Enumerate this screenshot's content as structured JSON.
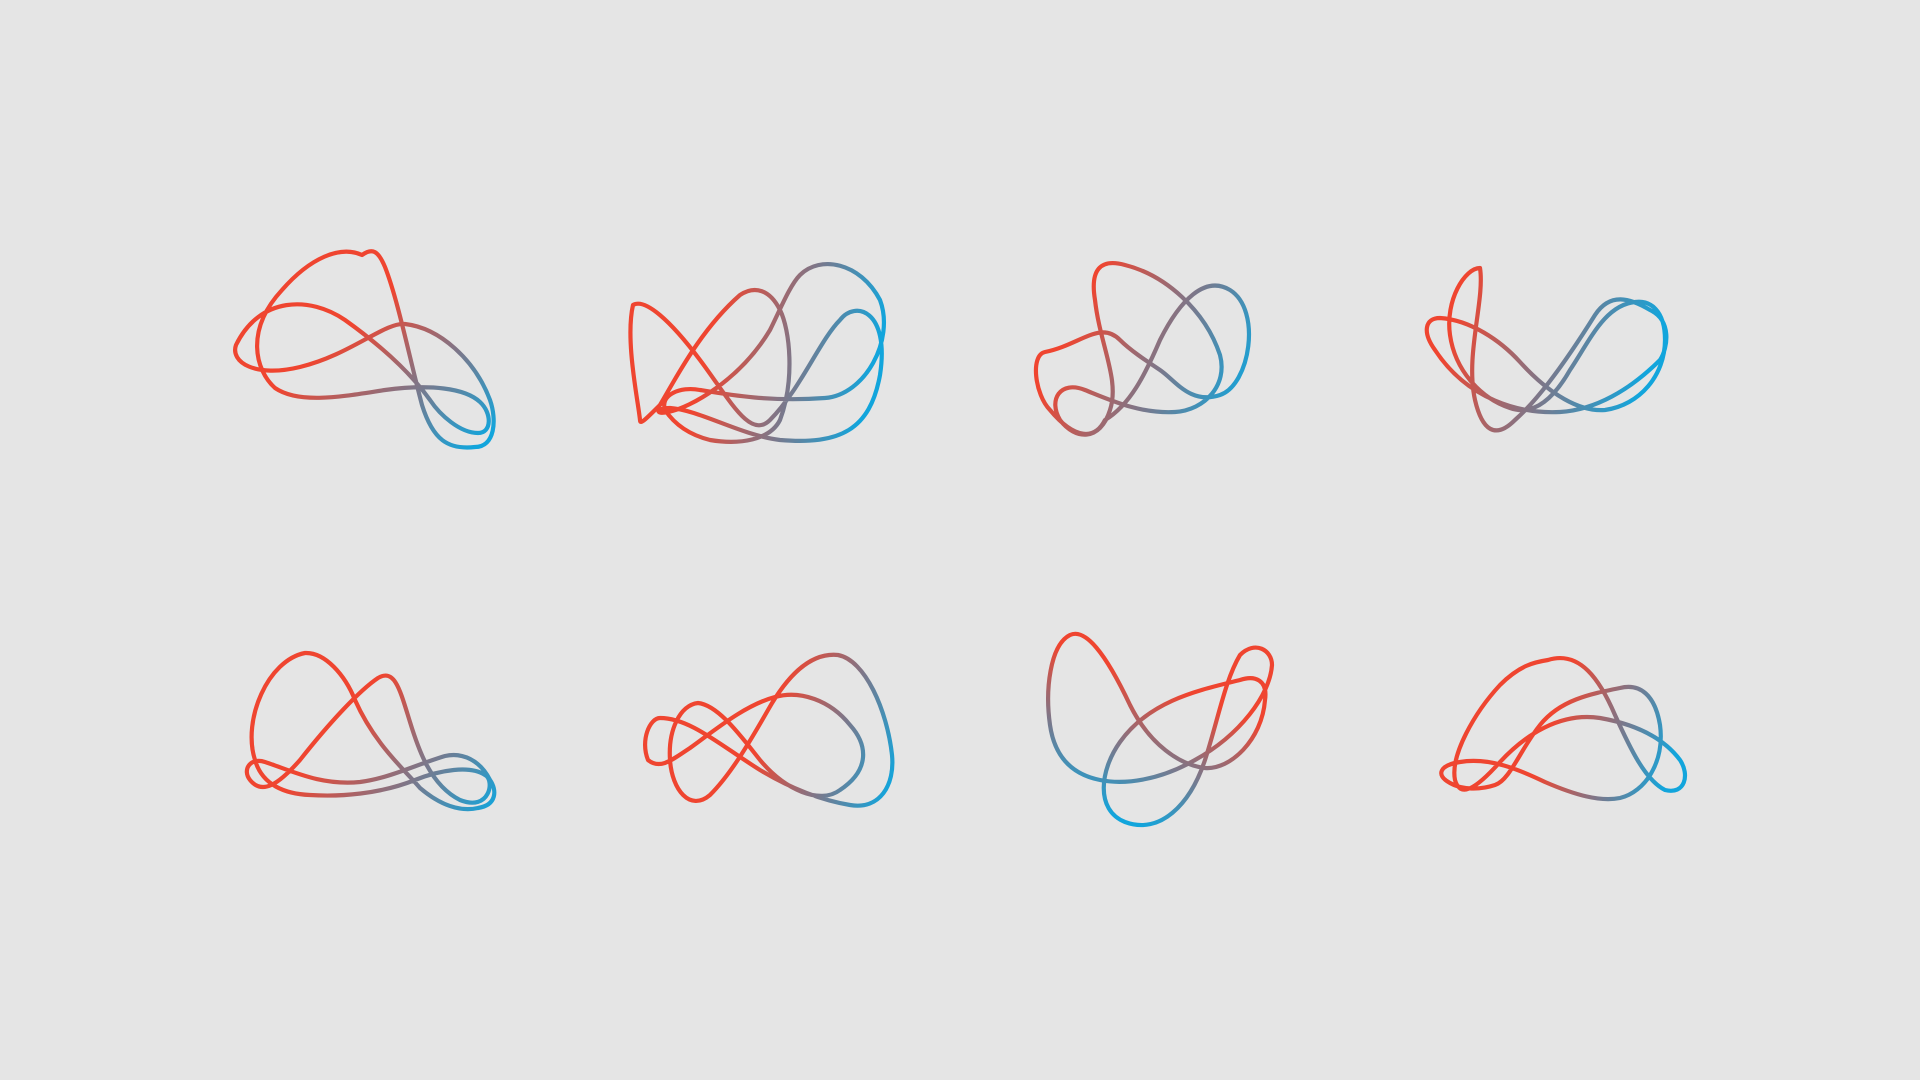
{
  "page": {
    "background_color": "#e5e5e5"
  },
  "palette": {
    "warm": "#ef4530",
    "cool": "#12a5dc",
    "mid": "#787d8f"
  },
  "figures": [
    {
      "id": "row1-col1",
      "shape": "loop-variant-1"
    },
    {
      "id": "row1-col2",
      "shape": "loop-variant-2"
    },
    {
      "id": "row1-col3",
      "shape": "loop-variant-3"
    },
    {
      "id": "row1-col4",
      "shape": "loop-variant-4"
    },
    {
      "id": "row2-col1",
      "shape": "loop-variant-5"
    },
    {
      "id": "row2-col2",
      "shape": "loop-variant-6"
    },
    {
      "id": "row2-col3",
      "shape": "loop-variant-7"
    },
    {
      "id": "row2-col4",
      "shape": "loop-variant-8"
    }
  ]
}
